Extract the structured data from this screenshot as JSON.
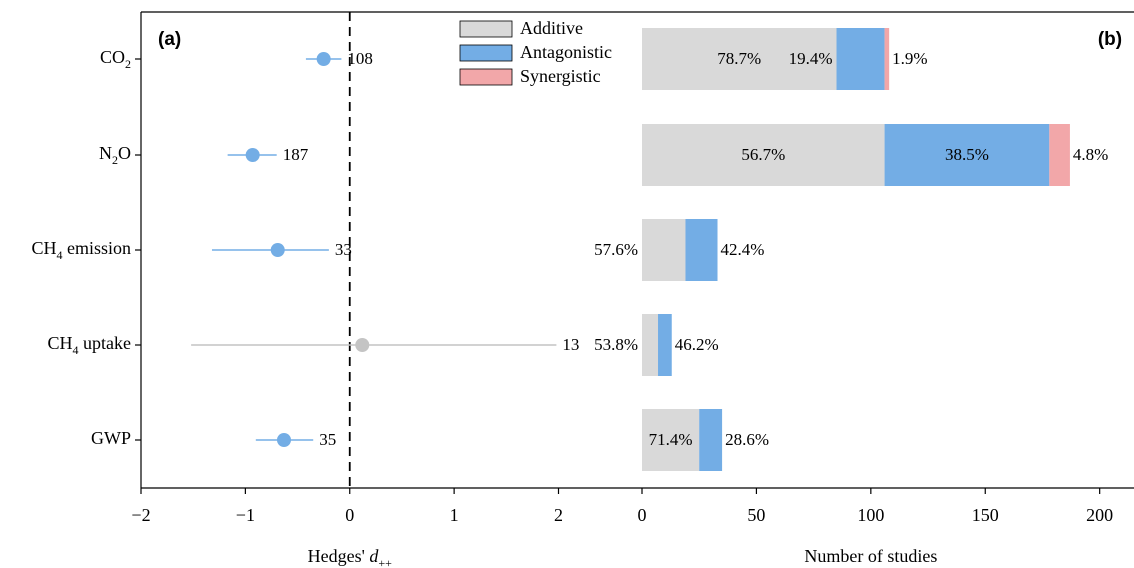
{
  "chart_data": [
    {
      "type": "scatter",
      "panel_label": "(a)",
      "xlabel": "Hedges' d",
      "xlabel_sub": "++",
      "xlim": [
        -2,
        2.8
      ],
      "xticks": [
        -2,
        -1,
        0,
        1,
        2
      ],
      "xtick_labels": [
        "−2",
        "−1",
        "0",
        "1",
        "2"
      ],
      "reference_line_x": 0,
      "categories": [
        {
          "label": "CO",
          "sub": "2",
          "suffix": ""
        },
        {
          "label": "N",
          "sub": "2",
          "suffix": "O"
        },
        {
          "label": "CH",
          "sub": "4",
          "suffix": " emission"
        },
        {
          "label": "CH",
          "sub": "4",
          "suffix": " uptake"
        },
        {
          "label": "GWP",
          "sub": "",
          "suffix": ""
        }
      ],
      "points": [
        {
          "mean": -0.25,
          "ci": [
            -0.42,
            -0.08
          ],
          "n": "108",
          "significant": true
        },
        {
          "mean": -0.93,
          "ci": [
            -1.17,
            -0.7
          ],
          "n": "187",
          "significant": true
        },
        {
          "mean": -0.69,
          "ci": [
            -1.32,
            -0.2
          ],
          "n": "33",
          "significant": true
        },
        {
          "mean": 0.12,
          "ci": [
            -1.52,
            1.98
          ],
          "n": "13",
          "significant": false
        },
        {
          "mean": -0.63,
          "ci": [
            -0.9,
            -0.35
          ],
          "n": "35",
          "significant": true
        }
      ],
      "colors": {
        "significant": "#73ade5",
        "nonsignificant": "#c4c4c4"
      }
    },
    {
      "type": "bar",
      "orientation": "horizontal",
      "stacked": true,
      "panel_label": "(b)",
      "xlabel": "Number of studies",
      "xlim": [
        0,
        215
      ],
      "xticks": [
        0,
        50,
        100,
        150,
        200
      ],
      "categories": [
        "CO2",
        "N2O",
        "CH4 emission",
        "CH4 uptake",
        "GWP"
      ],
      "legend_position": "top-center",
      "series": [
        {
          "name": "Additive",
          "color": "#d9d9d9",
          "values": [
            85,
            106,
            19,
            7,
            25
          ],
          "labels": [
            "78.7%",
            "56.7%",
            "57.6%",
            "53.8%",
            "71.4%"
          ]
        },
        {
          "name": "Antagonistic",
          "color": "#73ade5",
          "values": [
            21,
            72,
            14,
            6,
            10
          ],
          "labels": [
            "19.4%",
            "38.5%",
            "42.4%",
            "46.2%",
            "28.6%"
          ]
        },
        {
          "name": "Synergistic",
          "color": "#f2a7a9",
          "values": [
            2,
            9,
            0,
            0,
            0
          ],
          "labels": [
            "1.9%",
            "4.8%",
            "",
            "",
            ""
          ]
        }
      ]
    }
  ]
}
